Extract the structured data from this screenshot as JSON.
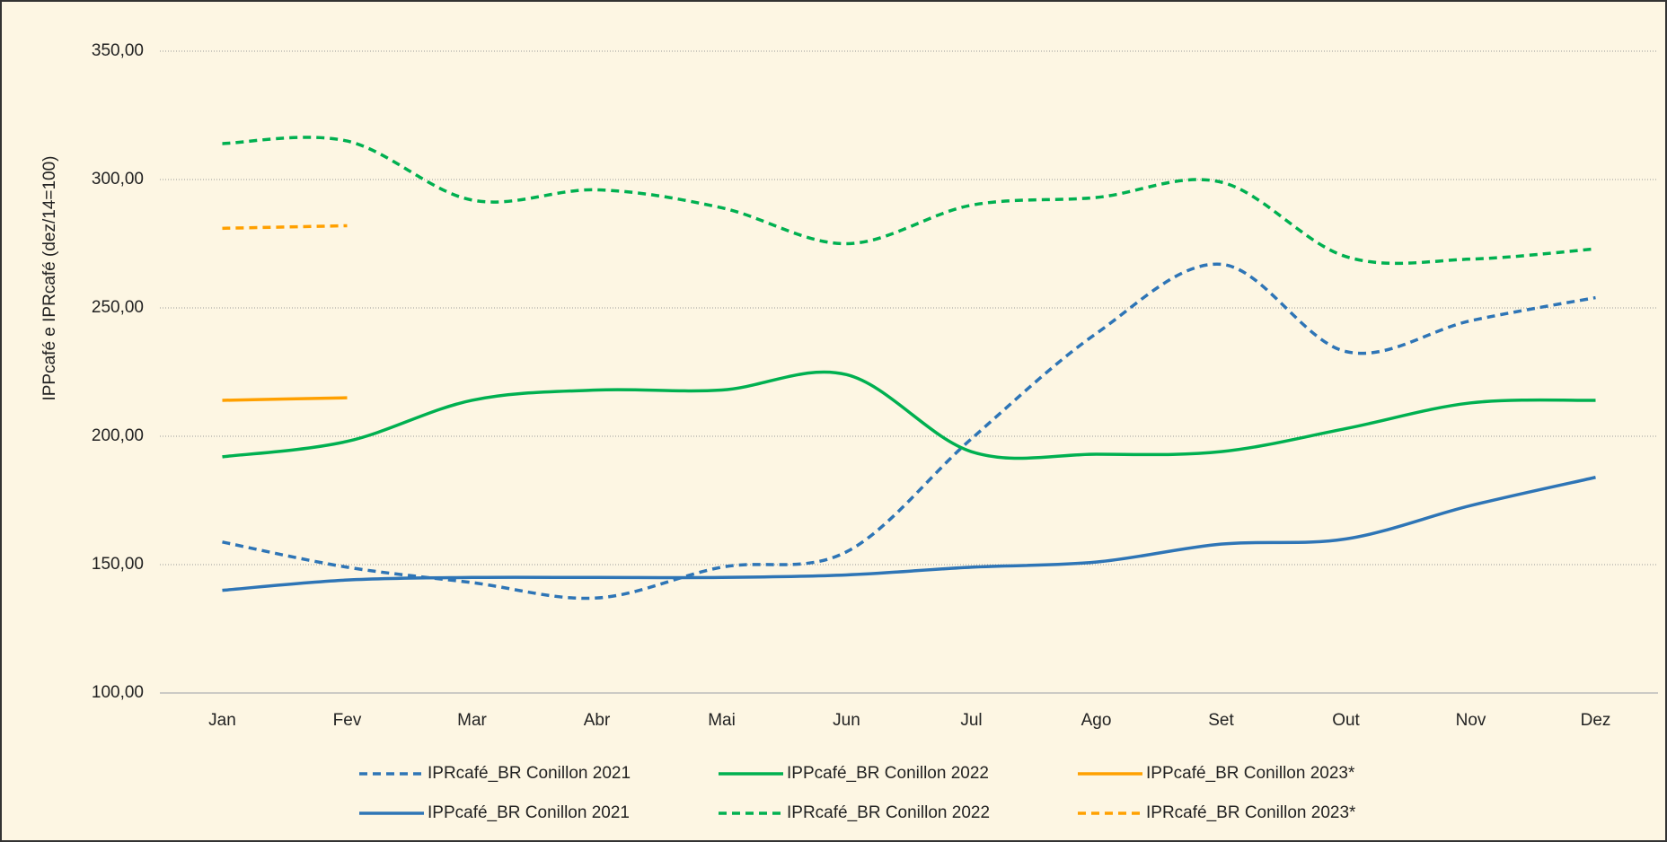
{
  "chart_data": {
    "type": "line",
    "y_label": "IPPcafé e IPRcafé (dez/14=100)",
    "categories": [
      "Jan",
      "Fev",
      "Mar",
      "Abr",
      "Mai",
      "Jun",
      "Jul",
      "Ago",
      "Set",
      "Out",
      "Nov",
      "Dez"
    ],
    "ylim": [
      100,
      350
    ],
    "yticks": [
      {
        "value": 100,
        "label": "100,00"
      },
      {
        "value": 150,
        "label": "150,00"
      },
      {
        "value": 200,
        "label": "200,00"
      },
      {
        "value": 250,
        "label": "250,00"
      },
      {
        "value": 300,
        "label": "300,00"
      },
      {
        "value": 350,
        "label": "350,00"
      }
    ],
    "grid": true,
    "legend": "bottom",
    "series": [
      {
        "name": "IPRcafé_BR Conillon 2021",
        "color": "#2e75b6",
        "dashed": true,
        "values": [
          158.8,
          149,
          143,
          137,
          149,
          155,
          199,
          240,
          267,
          233,
          245,
          254
        ]
      },
      {
        "name": "IPPcafé_BR Conillon 2022",
        "color": "#00b050",
        "dashed": false,
        "values": [
          192,
          198,
          214,
          218,
          218,
          224,
          194,
          193,
          194,
          203,
          213,
          214
        ]
      },
      {
        "name": "IPPcafé_BR Conillon 2023*",
        "color": "#ffa000",
        "dashed": false,
        "values": [
          214,
          215,
          null,
          null,
          null,
          null,
          null,
          null,
          null,
          null,
          null,
          null
        ]
      },
      {
        "name": "IPPcafé_BR Conillon 2021",
        "color": "#2e75b6",
        "dashed": false,
        "values": [
          140,
          144,
          145,
          145,
          145,
          146,
          149,
          151,
          158,
          160,
          173,
          184
        ]
      },
      {
        "name": "IPRcafé_BR Conillon 2022",
        "color": "#00b050",
        "dashed": true,
        "values": [
          314,
          315,
          292,
          296,
          289,
          275,
          290,
          293,
          299,
          270,
          269,
          273
        ]
      },
      {
        "name": "IPRcafé_BR Conillon 2023*",
        "color": "#ffa000",
        "dashed": true,
        "values": [
          281,
          282,
          null,
          null,
          null,
          null,
          null,
          null,
          null,
          null,
          null,
          null
        ]
      }
    ]
  }
}
